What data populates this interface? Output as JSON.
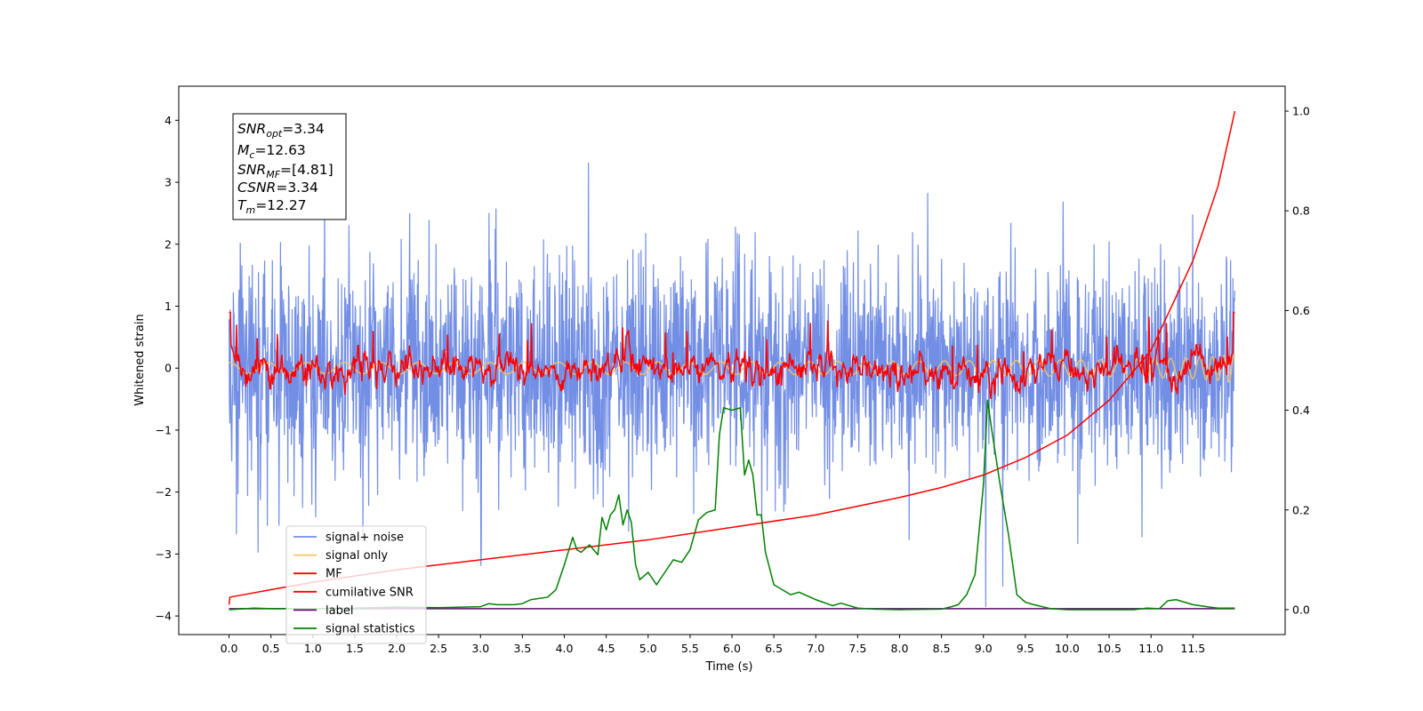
{
  "chart_data": {
    "type": "line",
    "xlabel": "Time (s)",
    "ylabel": "Whitened strain",
    "xlim": [
      -0.6,
      12.6
    ],
    "ylim": [
      -4.3,
      4.55
    ],
    "y2lim": [
      -0.05,
      1.05
    ],
    "x_ticks": [
      "0.0",
      "0.5",
      "1.0",
      "1.5",
      "2.0",
      "2.5",
      "3.0",
      "3.5",
      "4.0",
      "4.5",
      "5.0",
      "5.5",
      "6.0",
      "6.5",
      "7.0",
      "7.5",
      "8.0",
      "8.5",
      "9.0",
      "9.5",
      "10.0",
      "10.5",
      "11.0",
      "11.5"
    ],
    "y_ticks": [
      "−4",
      "−3",
      "−2",
      "−1",
      "0",
      "1",
      "2",
      "3",
      "4"
    ],
    "y2_ticks": [
      "0.0",
      "0.2",
      "0.4",
      "0.6",
      "0.8",
      "1.0"
    ],
    "grid": false,
    "legend_position": "lower-left",
    "info_box": {
      "snr_opt": {
        "base": "SNR",
        "sub": "opt",
        "value": "=3.34"
      },
      "mc": {
        "base": "M",
        "sub": "c",
        "value": "=12.63"
      },
      "snr_mf": {
        "base": "SNR",
        "sub": "MF",
        "value": "=[4.81]"
      },
      "csnr": {
        "base": "CSNR",
        "sub": "",
        "value": "=3.34"
      },
      "tm": {
        "base": "T",
        "sub": "m",
        "value": "=12.27"
      }
    },
    "series": [
      {
        "name": "signal+ noise",
        "color": "#6a88e4",
        "axis": "left",
        "kind": "noise",
        "std": 0.85,
        "clip": [
          -3.85,
          4.2
        ]
      },
      {
        "name": "signal only",
        "color": "#f5c361",
        "axis": "left",
        "kind": "chirp"
      },
      {
        "name": "MF",
        "color": "#ff0000",
        "axis": "left",
        "kind": "mf"
      },
      {
        "name": "cumilative SNR",
        "color": "#ff0000",
        "axis": "right",
        "x": [
          0,
          0.01,
          0.5,
          1,
          2,
          3,
          4,
          5,
          6,
          7,
          8,
          8.5,
          9,
          9.5,
          10,
          10.5,
          11,
          11.5,
          11.8,
          12.0
        ],
        "y": [
          0.01,
          0.025,
          0.04,
          0.055,
          0.08,
          0.1,
          0.12,
          0.14,
          0.165,
          0.19,
          0.225,
          0.245,
          0.27,
          0.305,
          0.35,
          0.42,
          0.52,
          0.7,
          0.85,
          1.0
        ]
      },
      {
        "name": "label",
        "color": "#5b0c6a",
        "axis": "right",
        "x": [
          0,
          12.0
        ],
        "y": [
          0.002,
          0.002
        ]
      },
      {
        "name": "signal statistics",
        "color": "#008000",
        "axis": "right",
        "x": [
          0,
          0.3,
          0.5,
          1.0,
          1.5,
          2.0,
          2.5,
          3.0,
          3.1,
          3.2,
          3.4,
          3.5,
          3.6,
          3.8,
          3.9,
          4.0,
          4.1,
          4.15,
          4.2,
          4.3,
          4.4,
          4.45,
          4.5,
          4.55,
          4.6,
          4.65,
          4.7,
          4.75,
          4.8,
          4.85,
          4.9,
          5.0,
          5.1,
          5.2,
          5.3,
          5.4,
          5.5,
          5.6,
          5.7,
          5.8,
          5.85,
          5.9,
          6.0,
          6.1,
          6.15,
          6.2,
          6.25,
          6.3,
          6.35,
          6.4,
          6.5,
          6.6,
          6.7,
          6.8,
          7.0,
          7.2,
          7.3,
          7.5,
          7.7,
          8.0,
          8.5,
          8.6,
          8.7,
          8.8,
          8.9,
          9.0,
          9.05,
          9.1,
          9.2,
          9.3,
          9.4,
          9.5,
          9.6,
          9.8,
          10.0,
          10.5,
          10.8,
          10.95,
          11.1,
          11.2,
          11.3,
          11.5,
          11.7,
          11.8,
          12.0
        ],
        "y": [
          0.0,
          0.003,
          0.002,
          0.002,
          0.003,
          0.005,
          0.004,
          0.006,
          0.012,
          0.01,
          0.01,
          0.012,
          0.02,
          0.025,
          0.04,
          0.09,
          0.145,
          0.12,
          0.115,
          0.13,
          0.11,
          0.185,
          0.16,
          0.19,
          0.2,
          0.23,
          0.17,
          0.2,
          0.175,
          0.09,
          0.06,
          0.075,
          0.05,
          0.075,
          0.1,
          0.095,
          0.12,
          0.18,
          0.195,
          0.2,
          0.35,
          0.405,
          0.4,
          0.405,
          0.27,
          0.3,
          0.27,
          0.19,
          0.19,
          0.115,
          0.05,
          0.04,
          0.03,
          0.035,
          0.02,
          0.008,
          0.013,
          0.003,
          0.001,
          0.0,
          0.001,
          0.005,
          0.01,
          0.03,
          0.07,
          0.25,
          0.42,
          0.36,
          0.25,
          0.15,
          0.03,
          0.015,
          0.01,
          0.002,
          0.0,
          0.0,
          0.0,
          0.003,
          0.002,
          0.018,
          0.02,
          0.01,
          0.005,
          0.003,
          0.003
        ]
      }
    ]
  }
}
